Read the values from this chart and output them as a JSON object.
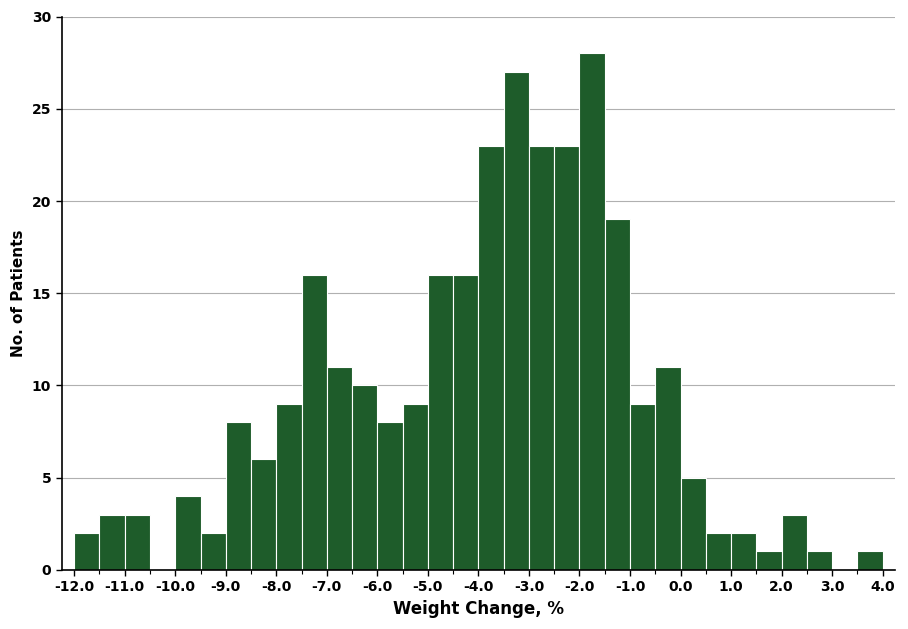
{
  "bar_left_edges": [
    -12.0,
    -11.5,
    -11.0,
    -10.5,
    -10.0,
    -9.5,
    -9.0,
    -8.5,
    -8.0,
    -7.5,
    -7.0,
    -6.5,
    -6.0,
    -5.5,
    -5.0,
    -4.5,
    -4.0,
    -3.5,
    -3.0,
    -2.5,
    -2.0,
    -1.5,
    -1.0,
    -0.5,
    0.0,
    0.5,
    1.0,
    1.5,
    2.0,
    2.5,
    3.0,
    3.5
  ],
  "bar_heights": [
    2,
    3,
    3,
    0,
    4,
    2,
    8,
    6,
    9,
    16,
    11,
    10,
    8,
    9,
    16,
    16,
    23,
    27,
    23,
    23,
    28,
    19,
    9,
    11,
    5,
    2,
    2,
    1,
    3,
    1,
    0,
    1
  ],
  "bar_width": 0.5,
  "bar_color": "#1e5c2a",
  "bar_edgecolor": "#ffffff",
  "bar_linewidth": 0.8,
  "xlim": [
    -12.25,
    4.25
  ],
  "ylim": [
    0,
    30
  ],
  "xticks": [
    -12.0,
    -11.0,
    -10.0,
    -9.0,
    -8.0,
    -7.0,
    -6.0,
    -5.0,
    -4.0,
    -3.0,
    -2.0,
    -1.0,
    0.0,
    1.0,
    2.0,
    3.0,
    4.0
  ],
  "yticks": [
    0,
    5,
    10,
    15,
    20,
    25,
    30
  ],
  "xlabel": "Weight Change, %",
  "ylabel": "No. of Patients",
  "xlabel_fontsize": 12,
  "ylabel_fontsize": 11,
  "tick_fontsize": 10,
  "grid_color": "#b0b0b0",
  "grid_linewidth": 0.8,
  "axis_linewidth": 1.2,
  "background_color": "#ffffff"
}
